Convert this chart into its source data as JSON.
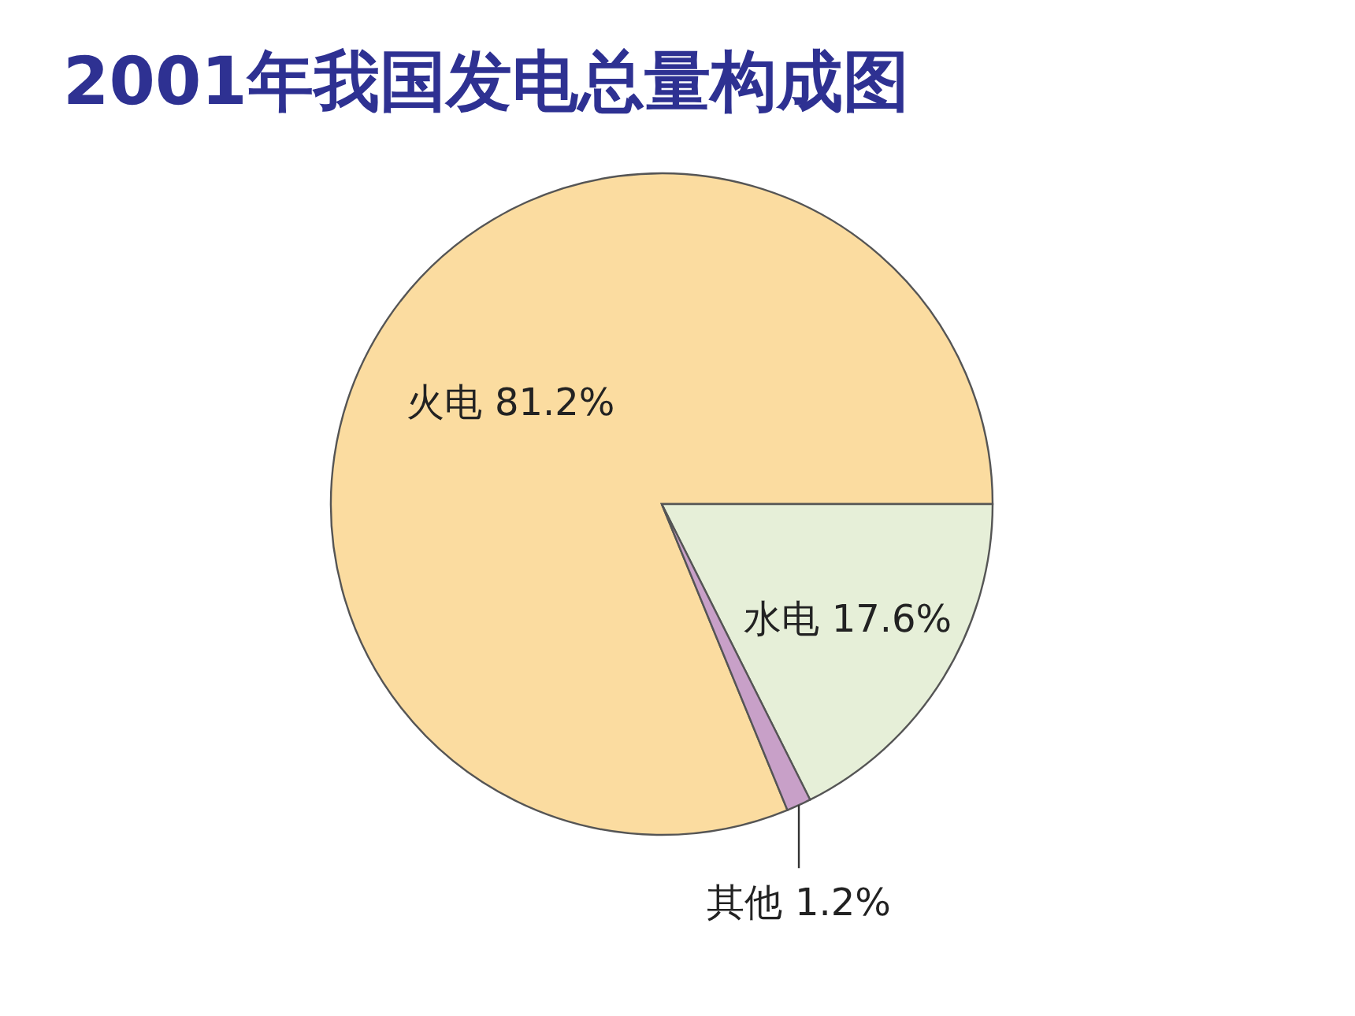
{
  "chart_data": {
    "type": "pie",
    "title": "2001年我国发电总量构成图",
    "categories": [
      "火电",
      "水电",
      "其他"
    ],
    "values": [
      81.2,
      17.6,
      1.2
    ],
    "value_labels": [
      "81.2%",
      "17.6%",
      "1.2%"
    ],
    "colors": [
      "#fbdca0",
      "#e6efd8",
      "#c8a0c8"
    ]
  }
}
